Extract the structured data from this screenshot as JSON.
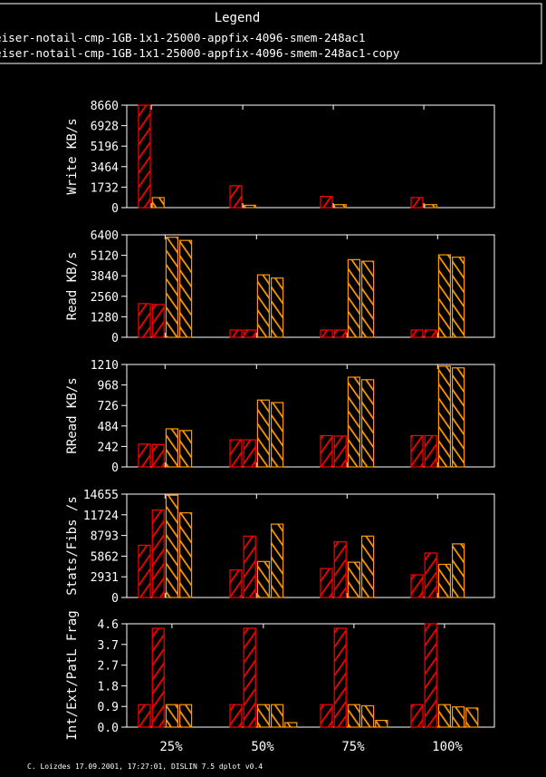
{
  "legend": {
    "title": "Legend",
    "entries": [
      "eiser-notail-cmp-1GB-1x1-25000-appfix-4096-smem-248ac1",
      "eiser-notail-cmp-1GB-1x1-25000-appfix-4096-smem-248ac1-copy"
    ]
  },
  "footer": "C. Loizdes 17.09.2001, 17:27:01, DISLIN 7.5 dplot v0.4",
  "colors": {
    "series1": "#ff0000",
    "series2": "#ff9900",
    "frame": "#ffffff",
    "background": "#000000"
  },
  "x_categories": [
    "25%",
    "50%",
    "75%",
    "100%"
  ],
  "chart_data": [
    {
      "type": "bar",
      "ylabel": "Write KB/s",
      "ylim": [
        0,
        8660
      ],
      "yticks": [
        "0",
        "1732",
        "3464",
        "5196",
        "6928",
        "8660"
      ],
      "categories": [
        "25%",
        "50%",
        "75%",
        "100%"
      ],
      "series": [
        {
          "name": "eiser-notail-cmp-1GB-1x1-25000-appfix-4096-smem-248ac1",
          "values": [
            8660,
            1850,
            950,
            850
          ]
        },
        {
          "name": "eiser-notail-cmp-1GB-1x1-25000-appfix-4096-smem-248ac1-copy",
          "values": [
            850,
            200,
            250,
            250
          ]
        }
      ]
    },
    {
      "type": "bar",
      "ylabel": "Read KB/s",
      "ylim": [
        0,
        6400
      ],
      "yticks": [
        "0",
        "1280",
        "2560",
        "3840",
        "5120",
        "6400"
      ],
      "categories": [
        "25%",
        "50%",
        "75%",
        "100%"
      ],
      "series": [
        {
          "name": "eiser-notail-cmp-1GB-1x1-25000-appfix-4096-smem-248ac1",
          "values": [
            2100,
            450,
            450,
            450
          ]
        },
        {
          "name": "eiser-notail-cmp-1GB-1x1-25000-appfix-4096-smem-248ac1",
          "values": [
            2050,
            450,
            450,
            450
          ]
        },
        {
          "name": "eiser-notail-cmp-1GB-1x1-25000-appfix-4096-smem-248ac1-copy",
          "values": [
            6250,
            3900,
            4850,
            5150
          ]
        },
        {
          "name": "eiser-notail-cmp-1GB-1x1-25000-appfix-4096-smem-248ac1-copy",
          "values": [
            6050,
            3700,
            4750,
            5000
          ]
        }
      ]
    },
    {
      "type": "bar",
      "ylabel": "RRead KB/s",
      "ylim": [
        0,
        1210
      ],
      "yticks": [
        "0",
        "242",
        "484",
        "726",
        "968",
        "1210"
      ],
      "categories": [
        "25%",
        "50%",
        "75%",
        "100%"
      ],
      "series": [
        {
          "name": "eiser-notail-cmp-1GB-1x1-25000-appfix-4096-smem-248ac1",
          "values": [
            270,
            320,
            370,
            370
          ]
        },
        {
          "name": "eiser-notail-cmp-1GB-1x1-25000-appfix-4096-smem-248ac1",
          "values": [
            265,
            320,
            365,
            370
          ]
        },
        {
          "name": "eiser-notail-cmp-1GB-1x1-25000-appfix-4096-smem-248ac1-copy",
          "values": [
            450,
            790,
            1060,
            1190
          ]
        },
        {
          "name": "eiser-notail-cmp-1GB-1x1-25000-appfix-4096-smem-248ac1-copy",
          "values": [
            430,
            760,
            1030,
            1170
          ]
        }
      ]
    },
    {
      "type": "bar",
      "ylabel": "Stats/Fibs /s",
      "ylim": [
        0,
        14655
      ],
      "yticks": [
        "0",
        "2931",
        "5862",
        "8793",
        "11724",
        "14655"
      ],
      "categories": [
        "25%",
        "50%",
        "75%",
        "100%"
      ],
      "series": [
        {
          "name": "eiser-notail-cmp-1GB-1x1-25000-appfix-4096-smem-248ac1",
          "values": [
            7400,
            3900,
            4100,
            3200
          ]
        },
        {
          "name": "eiser-notail-cmp-1GB-1x1-25000-appfix-4096-smem-248ac1",
          "values": [
            12400,
            8700,
            7900,
            6300
          ]
        },
        {
          "name": "eiser-notail-cmp-1GB-1x1-25000-appfix-4096-smem-248ac1-copy",
          "values": [
            14500,
            5100,
            5000,
            4700
          ]
        },
        {
          "name": "eiser-notail-cmp-1GB-1x1-25000-appfix-4096-smem-248ac1-copy",
          "values": [
            12000,
            10400,
            8700,
            7600
          ]
        }
      ]
    },
    {
      "type": "bar",
      "ylabel": "Int/Ext/PatL Frag",
      "ylim": [
        0,
        4.6
      ],
      "yticks": [
        "0.0",
        "0.9",
        "1.8",
        "2.7",
        "3.7",
        "4.6"
      ],
      "categories": [
        "25%",
        "50%",
        "75%",
        "100%"
      ],
      "series": [
        {
          "name": "eiser-notail-cmp-1GB-1x1-25000-appfix-4096-smem-248ac1",
          "values": [
            1.0,
            1.0,
            1.0,
            1.0
          ]
        },
        {
          "name": "eiser-notail-cmp-1GB-1x1-25000-appfix-4096-smem-248ac1",
          "values": [
            4.4,
            4.4,
            4.4,
            4.6
          ]
        },
        {
          "name": "eiser-notail-cmp-1GB-1x1-25000-appfix-4096-smem-248ac1-copy",
          "values": [
            1.0,
            1.0,
            1.0,
            1.0
          ]
        },
        {
          "name": "eiser-notail-cmp-1GB-1x1-25000-appfix-4096-smem-248ac1-copy",
          "values": [
            1.0,
            1.0,
            0.95,
            0.9
          ]
        },
        {
          "name": "eiser-notail-cmp-1GB-1x1-25000-appfix-4096-smem-248ac1-copy",
          "values": [
            0.0,
            0.2,
            0.3,
            0.85
          ]
        }
      ]
    }
  ]
}
